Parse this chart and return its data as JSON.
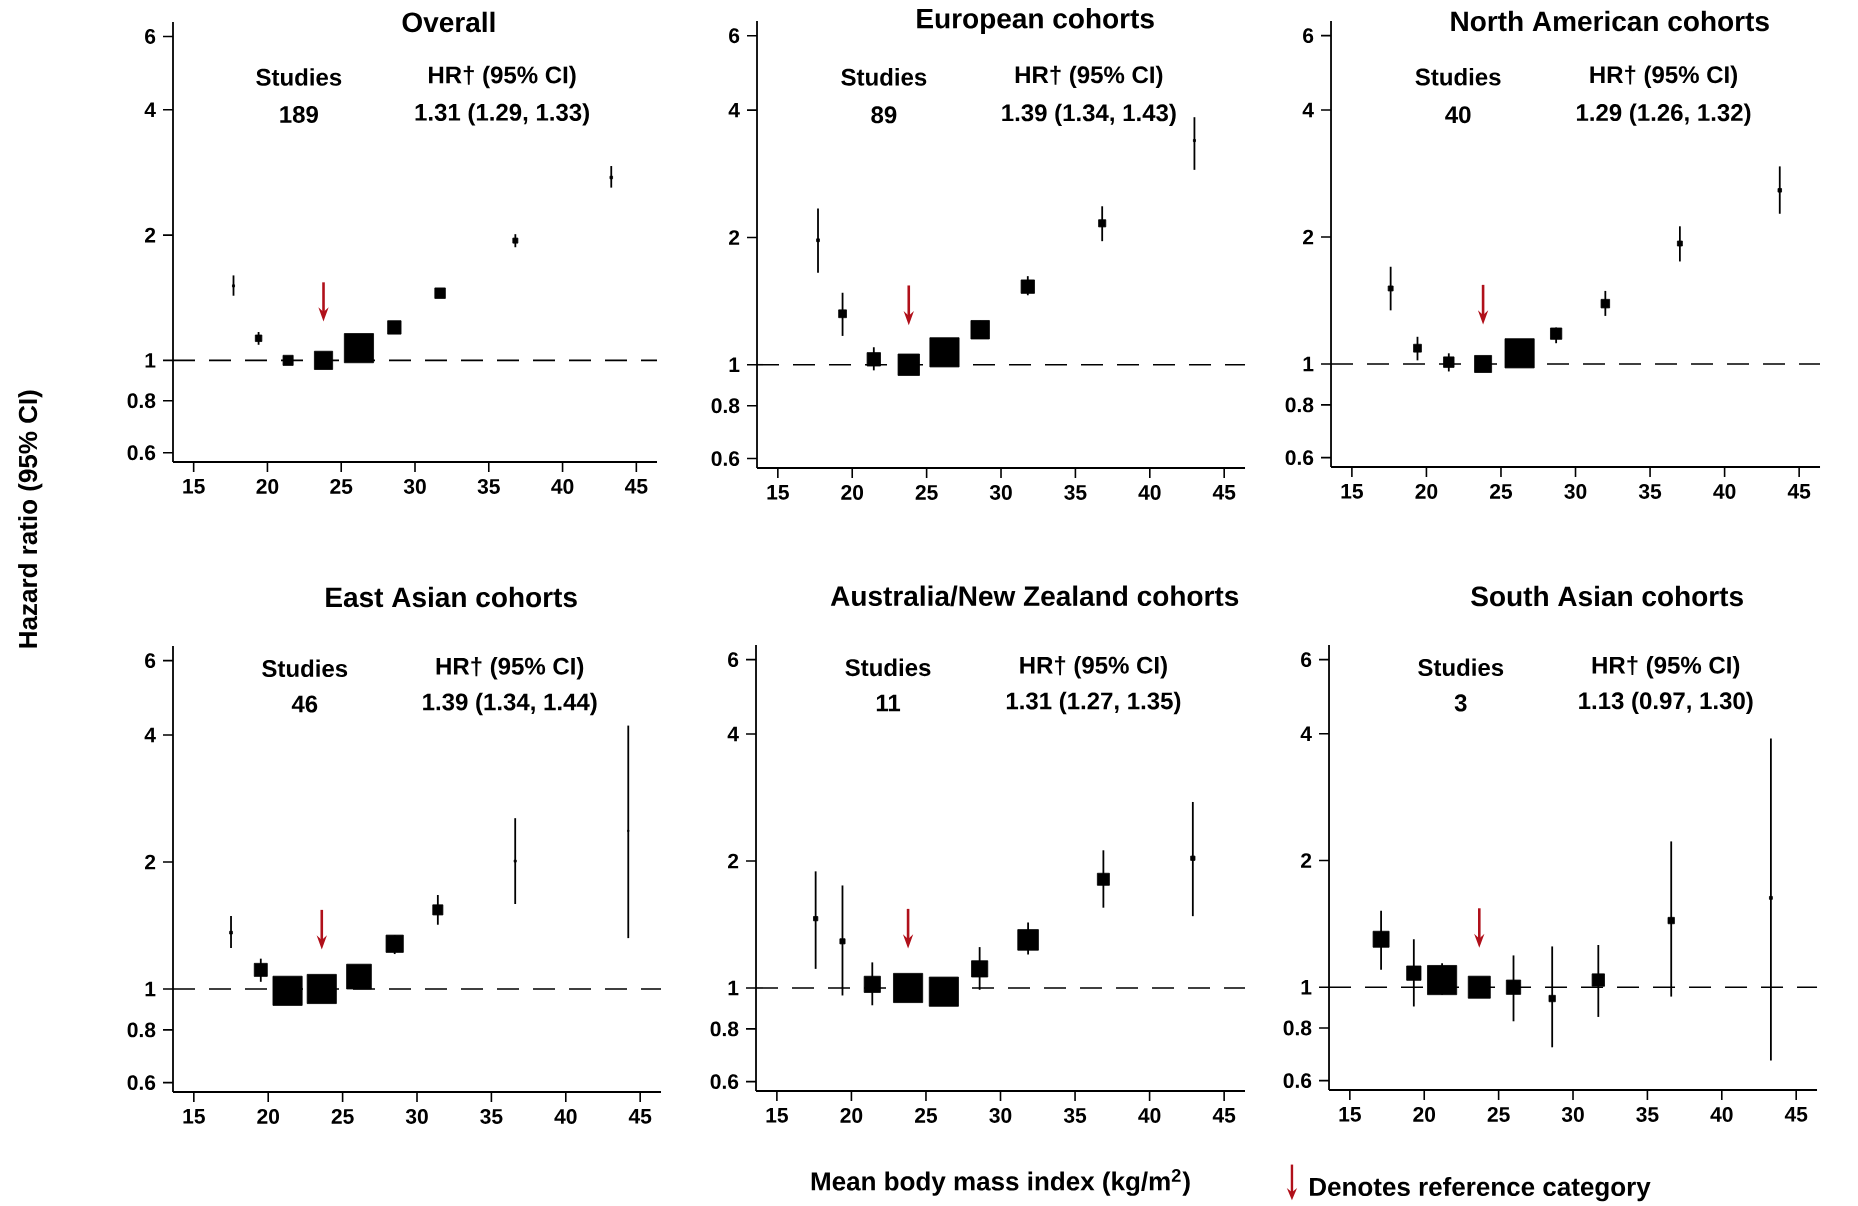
{
  "chart_data": [
    {
      "type": "bubble",
      "title": "Overall",
      "ylabel": "Hazard ratio (95% CI)",
      "annotations": [
        "Studies",
        "HR† (95% CI)",
        "189",
        "1.31 (1.29, 1.33)"
      ],
      "color": "#000000",
      "marker": "square",
      "log": "y",
      "xlim": [
        13.6,
        46.4
      ],
      "ylim": [
        0.57,
        6.5
      ],
      "xticks": [
        15,
        20,
        25,
        30,
        35,
        40,
        45
      ],
      "yticks": [
        0.6,
        0.8,
        1,
        2,
        4,
        6
      ],
      "ref_lines": [
        {
          "axis": "y",
          "value": 1,
          "line_style": "dashed"
        }
      ],
      "x": [
        17.7,
        19.4,
        21.4,
        23.8,
        26.2,
        28.6,
        31.7,
        36.8,
        43.3
      ],
      "values": [
        1.51,
        1.13,
        1.0,
        1.0,
        1.07,
        1.2,
        1.45,
        1.94,
        2.75
      ],
      "sizes": [
        0.005,
        0.05,
        0.12,
        0.39,
        1,
        0.21,
        0.13,
        0.03,
        0.008
      ],
      "errors": [
        [
          1.43,
          1.6
        ],
        [
          1.09,
          1.17
        ],
        [
          0.99,
          1.01
        ],
        null,
        [
          1.07,
          1.07
        ],
        [
          1.19,
          1.21
        ],
        [
          1.44,
          1.46
        ],
        [
          1.87,
          2.01
        ],
        [
          2.6,
          2.93
        ]
      ]
    },
    {
      "type": "bubble",
      "title": "European cohorts",
      "annotations": [
        "Studies",
        "HR† (95% CI)",
        "89",
        "1.39 (1.34, 1.43)"
      ],
      "color": "#000000",
      "marker": "square",
      "log": "y",
      "xlim": [
        13.6,
        46.4
      ],
      "ylim": [
        0.57,
        6.5
      ],
      "xticks": [
        15,
        20,
        25,
        30,
        35,
        40,
        45
      ],
      "yticks": [
        0.6,
        0.8,
        1,
        2,
        4,
        6
      ],
      "ref_lines": [
        {
          "axis": "y",
          "value": 1,
          "line_style": "dashed"
        }
      ],
      "x": [
        17.7,
        19.35,
        21.45,
        23.8,
        26.2,
        28.6,
        31.8,
        36.8,
        43.0
      ],
      "values": [
        1.97,
        1.32,
        1.03,
        1.0,
        1.07,
        1.21,
        1.53,
        2.16,
        3.39
      ],
      "sizes": [
        0.0095,
        0.072,
        0.21,
        0.54,
        1,
        0.4,
        0.21,
        0.06,
        0.005
      ],
      "errors": [
        [
          1.65,
          2.34
        ],
        [
          1.17,
          1.48
        ],
        [
          0.97,
          1.1
        ],
        null,
        [
          1.07,
          1.07
        ],
        [
          1.16,
          1.27
        ],
        [
          1.46,
          1.62
        ],
        [
          1.96,
          2.37
        ],
        [
          2.89,
          3.85
        ]
      ]
    },
    {
      "type": "bubble",
      "title": "North American cohorts",
      "annotations": [
        "Studies",
        "HR† (95% CI)",
        "40",
        "1.29 (1.26, 1.32)"
      ],
      "color": "#000000",
      "marker": "square",
      "log": "y",
      "xlim": [
        13.6,
        46.4
      ],
      "ylim": [
        0.57,
        6.5
      ],
      "xticks": [
        15,
        20,
        25,
        30,
        35,
        40,
        45
      ],
      "yticks": [
        0.6,
        0.8,
        1,
        2,
        4,
        6
      ],
      "ref_lines": [
        {
          "axis": "y",
          "value": 1,
          "line_style": "dashed"
        }
      ],
      "x": [
        17.6,
        19.4,
        21.5,
        23.8,
        26.25,
        28.7,
        32.0,
        37.0,
        43.7
      ],
      "values": [
        1.51,
        1.09,
        1.01,
        1.0,
        1.06,
        1.18,
        1.39,
        1.93,
        2.58
      ],
      "sizes": [
        0.029,
        0.072,
        0.13,
        0.34,
        1,
        0.15,
        0.086,
        0.029,
        0.015
      ],
      "errors": [
        [
          1.34,
          1.7
        ],
        [
          1.02,
          1.16
        ],
        [
          0.96,
          1.06
        ],
        null,
        [
          1.06,
          1.06
        ],
        [
          1.12,
          1.22
        ],
        [
          1.3,
          1.49
        ],
        [
          1.75,
          2.12
        ],
        [
          2.27,
          2.94
        ]
      ]
    },
    {
      "type": "bubble",
      "title": "East Asian cohorts",
      "annotations": [
        "Studies",
        "HR† (95% CI)",
        "46",
        "1.39 (1.34, 1.44)"
      ],
      "color": "#000000",
      "marker": "square",
      "log": "y",
      "xlim": [
        13.6,
        46.4
      ],
      "ylim": [
        0.57,
        6.5
      ],
      "xticks": [
        15,
        20,
        25,
        30,
        35,
        40,
        45
      ],
      "yticks": [
        0.6,
        0.8,
        1,
        2,
        4,
        6
      ],
      "ref_lines": [
        {
          "axis": "y",
          "value": 1,
          "line_style": "dashed"
        }
      ],
      "x": [
        17.5,
        19.5,
        21.3,
        23.6,
        26.1,
        28.5,
        31.4,
        36.6,
        44.2
      ],
      "values": [
        1.36,
        1.11,
        0.99,
        1.0,
        1.07,
        1.28,
        1.54,
        2.01,
        2.37
      ],
      "sizes": [
        0.009,
        0.2,
        1,
        1,
        0.72,
        0.35,
        0.12,
        0.005,
        0.002
      ],
      "errors": [
        [
          1.25,
          1.49
        ],
        [
          1.04,
          1.18
        ],
        [
          0.99,
          0.99
        ],
        null,
        [
          1.06,
          1.08
        ],
        [
          1.21,
          1.34
        ],
        [
          1.42,
          1.67
        ],
        [
          1.59,
          2.54
        ],
        [
          1.32,
          4.21
        ]
      ]
    },
    {
      "type": "bubble",
      "title": "Australia/New Zealand cohorts",
      "xlabel": "Mean body mass index (kg/m$^{2}$)",
      "annotations": [
        "Studies",
        "HR† (95% CI)",
        "11",
        "1.31 (1.27, 1.35)",
        "Denotes reference category"
      ],
      "color": "#000000",
      "marker": "square",
      "log": "y",
      "xlim": [
        13.6,
        46.4
      ],
      "ylim": [
        0.57,
        6.5
      ],
      "xticks": [
        15,
        20,
        25,
        30,
        35,
        40,
        45
      ],
      "yticks": [
        0.6,
        0.8,
        1,
        2,
        4,
        6
      ],
      "ref_lines": [
        {
          "axis": "y",
          "value": 1,
          "line_style": "dashed"
        }
      ],
      "x": [
        17.6,
        19.4,
        21.4,
        23.8,
        26.2,
        28.6,
        31.85,
        36.9,
        42.9
      ],
      "values": [
        1.46,
        1.29,
        1.02,
        1.0,
        0.98,
        1.11,
        1.3,
        1.81,
        2.03
      ],
      "sizes": [
        0.022,
        0.031,
        0.31,
        1,
        1,
        0.31,
        0.5,
        0.17,
        0.022
      ],
      "errors": [
        [
          1.11,
          1.89
        ],
        [
          0.96,
          1.75
        ],
        [
          0.91,
          1.15
        ],
        null,
        [
          0.98,
          0.98
        ],
        [
          0.99,
          1.25
        ],
        [
          1.2,
          1.43
        ],
        [
          1.55,
          2.12
        ],
        [
          1.48,
          2.76
        ]
      ]
    },
    {
      "type": "bubble",
      "title": "South Asian cohorts",
      "annotations": [
        "Studies",
        "HR† (95% CI)",
        "3",
        "1.13 (0.97, 1.30)"
      ],
      "color": "#000000",
      "marker": "square",
      "log": "y",
      "xlim": [
        13.6,
        46.4
      ],
      "ylim": [
        0.57,
        6.5
      ],
      "xticks": [
        15,
        20,
        25,
        30,
        35,
        40,
        45
      ],
      "yticks": [
        0.6,
        0.8,
        1,
        2,
        4,
        6
      ],
      "ref_lines": [
        {
          "axis": "y",
          "value": 1,
          "line_style": "dashed"
        }
      ],
      "x": [
        17.1,
        19.3,
        21.2,
        23.7,
        26.0,
        28.6,
        31.7,
        36.6,
        43.3
      ],
      "values": [
        1.3,
        1.08,
        1.04,
        1.0,
        1.0,
        0.94,
        1.04,
        1.44,
        1.63
      ],
      "sizes": [
        0.3,
        0.24,
        1,
        0.57,
        0.24,
        0.048,
        0.18,
        0.048,
        0.01
      ],
      "errors": [
        [
          1.1,
          1.52
        ],
        [
          0.9,
          1.3
        ],
        [
          0.96,
          1.14
        ],
        null,
        [
          0.83,
          1.19
        ],
        [
          0.72,
          1.25
        ],
        [
          0.85,
          1.26
        ],
        [
          0.95,
          2.22
        ],
        [
          0.67,
          3.9
        ]
      ]
    }
  ]
}
